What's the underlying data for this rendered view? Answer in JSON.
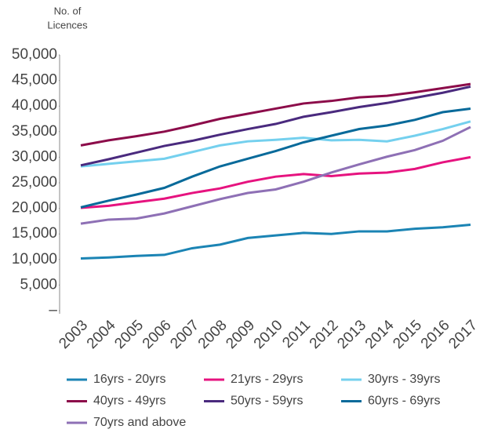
{
  "chart_data": {
    "type": "line",
    "y_axis_label": [
      "No. of",
      "Licences"
    ],
    "categories": [
      "2003",
      "2004",
      "2005",
      "2006",
      "2007",
      "2008",
      "2009",
      "2010",
      "2011",
      "2012",
      "2013",
      "2014",
      "2015",
      "2016",
      "2017"
    ],
    "series": [
      {
        "name": "16yrs - 20yrs",
        "color": "#1b84b4",
        "values": [
          10200,
          10400,
          10700,
          10900,
          12200,
          12900,
          14200,
          14700,
          15200,
          15000,
          15500,
          15500,
          16000,
          16300,
          16800
        ]
      },
      {
        "name": "21yrs - 29yrs",
        "color": "#e6137f",
        "values": [
          20100,
          20500,
          21200,
          21900,
          23000,
          23900,
          25200,
          26200,
          26700,
          26300,
          26800,
          27000,
          27700,
          29000,
          30000
        ]
      },
      {
        "name": "30yrs - 39yrs",
        "color": "#74d0ee",
        "values": [
          28200,
          28700,
          29200,
          29700,
          31000,
          32300,
          33100,
          33400,
          33800,
          33300,
          33400,
          33100,
          34200,
          35500,
          37000
        ]
      },
      {
        "name": "40yrs - 49yrs",
        "color": "#8c0c4a",
        "values": [
          32300,
          33300,
          34100,
          35000,
          36200,
          37500,
          38500,
          39500,
          40500,
          41000,
          41700,
          42000,
          42700,
          43500,
          44300
        ]
      },
      {
        "name": "50yrs - 59yrs",
        "color": "#4a2a7e",
        "values": [
          28400,
          29600,
          30900,
          32200,
          33200,
          34400,
          35500,
          36500,
          37900,
          38800,
          39800,
          40600,
          41600,
          42600,
          43800
        ]
      },
      {
        "name": "60yrs - 69yrs",
        "color": "#086a9a",
        "values": [
          20200,
          21500,
          22700,
          24000,
          26200,
          28200,
          29700,
          31200,
          32900,
          34200,
          35500,
          36200,
          37300,
          38800,
          39500
        ]
      },
      {
        "name": "70yrs and above",
        "color": "#8e70b5",
        "values": [
          17000,
          17800,
          18000,
          19000,
          20400,
          21800,
          23000,
          23700,
          25200,
          27000,
          28600,
          30100,
          31400,
          33200,
          35900
        ]
      }
    ],
    "ylim": [
      0,
      50000
    ],
    "yticks": [
      {
        "value": 0,
        "label": "–"
      },
      {
        "value": 5000,
        "label": "5,000"
      },
      {
        "value": 10000,
        "label": "10,000"
      },
      {
        "value": 15000,
        "label": "15,000"
      },
      {
        "value": 20000,
        "label": "20,000"
      },
      {
        "value": 25000,
        "label": "25,000"
      },
      {
        "value": 30000,
        "label": "30,000"
      },
      {
        "value": 35000,
        "label": "35,000"
      },
      {
        "value": 40000,
        "label": "40,000"
      },
      {
        "value": 45000,
        "label": "45,000"
      },
      {
        "value": 50000,
        "label": "50,000"
      }
    ],
    "grid": false
  }
}
